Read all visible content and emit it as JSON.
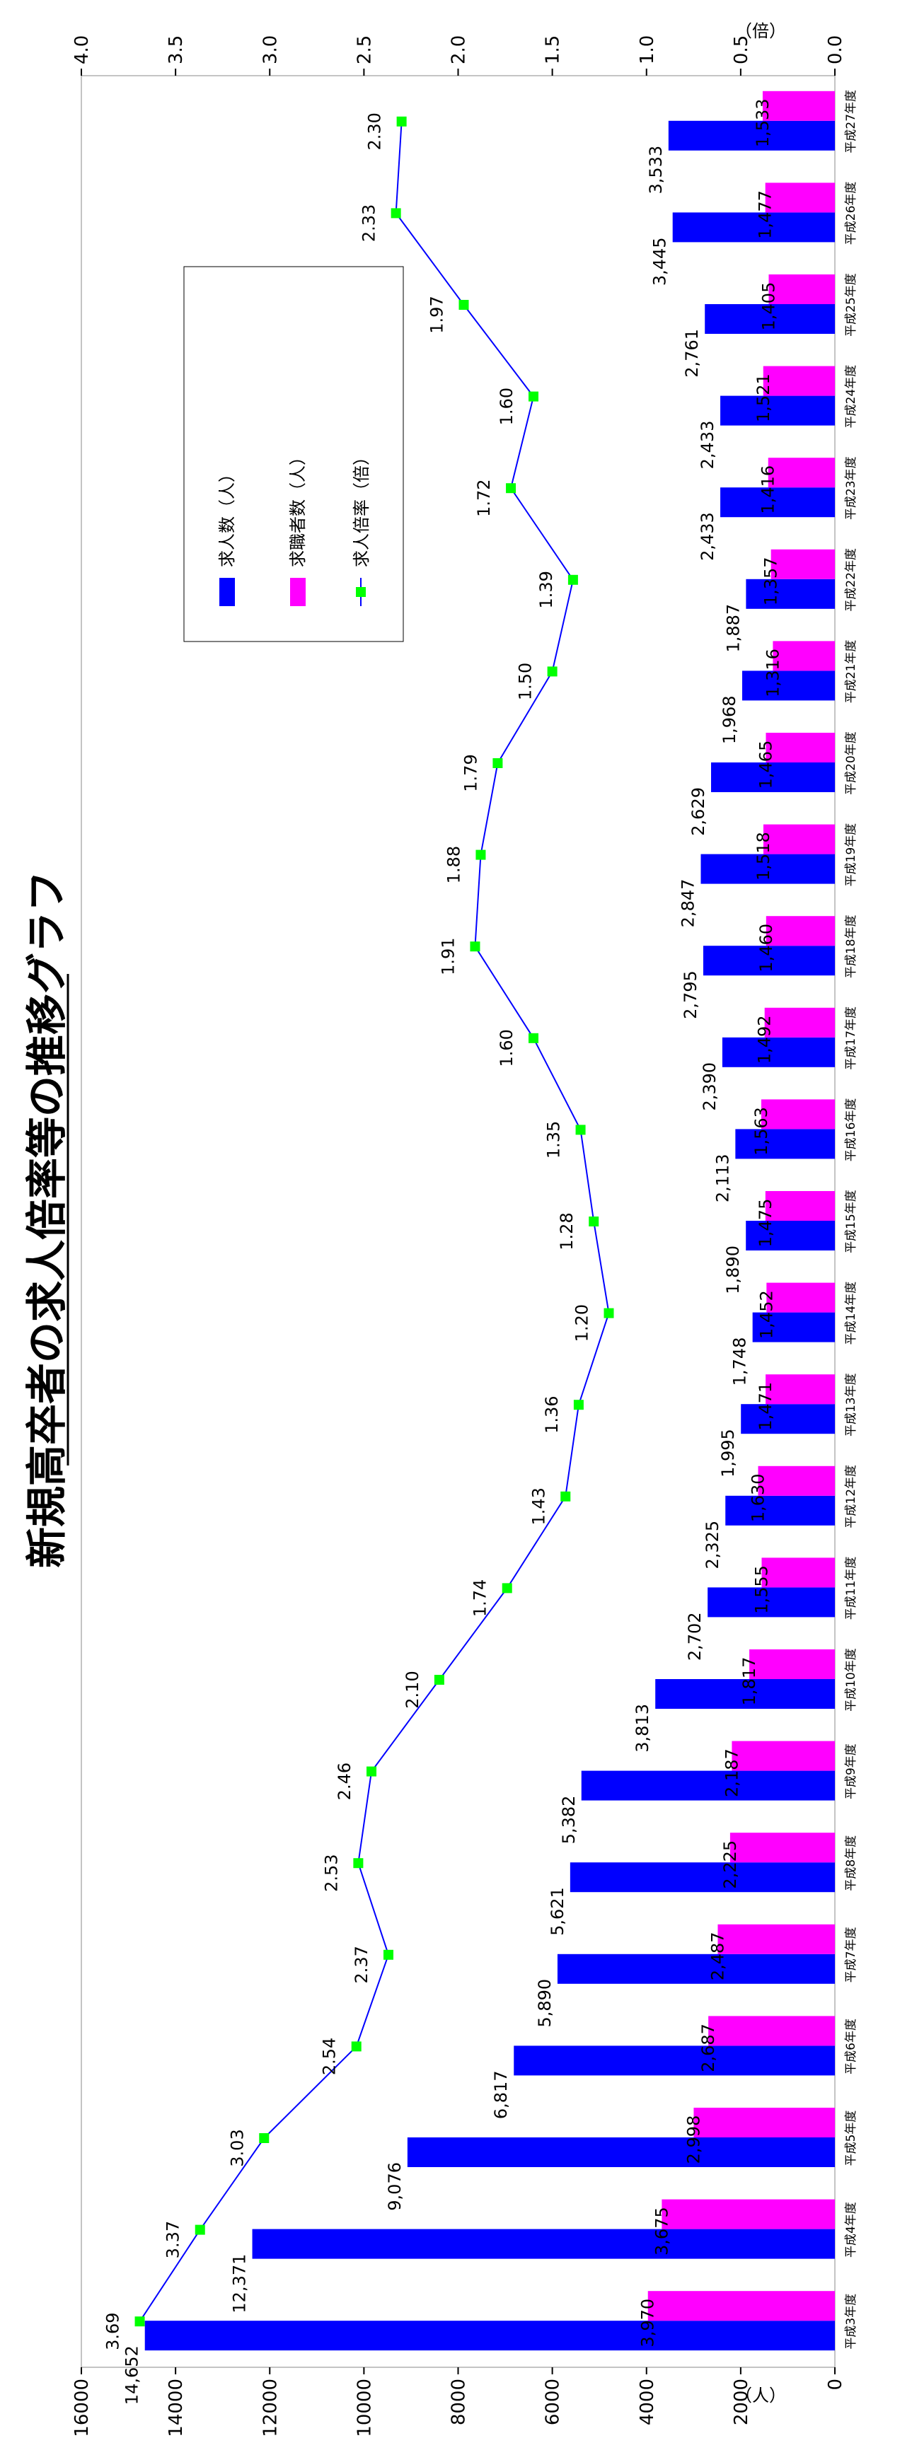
{
  "chart_data": {
    "type": "bar",
    "title": "新規高卒者の求人倍率等の推移グラフ",
    "left_unit": "（人）",
    "right_unit": "（倍）",
    "left_ticks": [
      "0",
      "2000",
      "4000",
      "6000",
      "8000",
      "10000",
      "12000",
      "14000",
      "16000"
    ],
    "right_ticks": [
      "0.0",
      "0.5",
      "1.0",
      "1.5",
      "2.0",
      "2.5",
      "3.0",
      "3.5",
      "4.0"
    ],
    "ylim_left": [
      0,
      16000
    ],
    "ylim_right": [
      0,
      4.0
    ],
    "categories": [
      "平成3年度",
      "平成4年度",
      "平成5年度",
      "平成6年度",
      "平成7年度",
      "平成8年度",
      "平成9年度",
      "平成10年度",
      "平成11年度",
      "平成12年度",
      "平成13年度",
      "平成14年度",
      "平成15年度",
      "平成16年度",
      "平成17年度",
      "平成18年度",
      "平成19年度",
      "平成20年度",
      "平成21年度",
      "平成22年度",
      "平成23年度",
      "平成24年度",
      "平成25年度",
      "平成26年度",
      "平成27年度"
    ],
    "series": [
      {
        "name": "求人数（人）",
        "color": "#0000ff",
        "values": [
          14652,
          12371,
          9076,
          6817,
          5890,
          5621,
          5382,
          3813,
          2702,
          2325,
          1995,
          1748,
          1890,
          2113,
          2390,
          2795,
          2847,
          2629,
          1968,
          1887,
          2433,
          2433,
          2761,
          3445,
          3533
        ],
        "labels": [
          "14,652",
          "12,371",
          "9,076",
          "6,817",
          "5,890",
          "5,621",
          "5,382",
          "3,813",
          "2,702",
          "2,325",
          "1,995",
          "1,748",
          "1,890",
          "2,113",
          "2,390",
          "2,795",
          "2,847",
          "2,629",
          "1,968",
          "1,887",
          "2,433",
          "2,433",
          "2,761",
          "3,445",
          "3,533"
        ]
      },
      {
        "name": "求職者数（人）",
        "color": "#ff00ff",
        "values": [
          3970,
          3675,
          2998,
          2687,
          2487,
          2225,
          2187,
          1817,
          1555,
          1630,
          1471,
          1452,
          1475,
          1563,
          1492,
          1460,
          1518,
          1465,
          1316,
          1357,
          1416,
          1521,
          1405,
          1477,
          1533
        ],
        "labels": [
          "3,970",
          "3,675",
          "2,998",
          "2,687",
          "2,487",
          "2,225",
          "2,187",
          "1,817",
          "1,555",
          "1,630",
          "1,471",
          "1,452",
          "1,475",
          "1,563",
          "1,492",
          "1,460",
          "1,518",
          "1,465",
          "1,316",
          "1,357",
          "1,416",
          "1,521",
          "1,405",
          "1,477",
          "1,533"
        ]
      },
      {
        "name": "求人倍率（倍）",
        "color": "#0000ff",
        "marker_color": "#00ff00",
        "axis": "right",
        "values": [
          3.69,
          3.37,
          3.03,
          2.54,
          2.37,
          2.53,
          2.46,
          2.1,
          1.74,
          1.43,
          1.36,
          1.2,
          1.28,
          1.35,
          1.6,
          1.91,
          1.88,
          1.79,
          1.5,
          1.39,
          1.72,
          1.6,
          1.97,
          2.33,
          2.3
        ],
        "labels": [
          "3.69",
          "3.37",
          "3.03",
          "2.54",
          "2.37",
          "2.53",
          "2.46",
          "2.10",
          "1.74",
          "1.43",
          "1.36",
          "1.20",
          "1.28",
          "1.35",
          "1.60",
          "1.91",
          "1.88",
          "1.79",
          "1.50",
          "1.39",
          "1.72",
          "1.60",
          "1.97",
          "2.33",
          "2.30"
        ]
      }
    ],
    "grid": false,
    "legend": "right-center"
  }
}
